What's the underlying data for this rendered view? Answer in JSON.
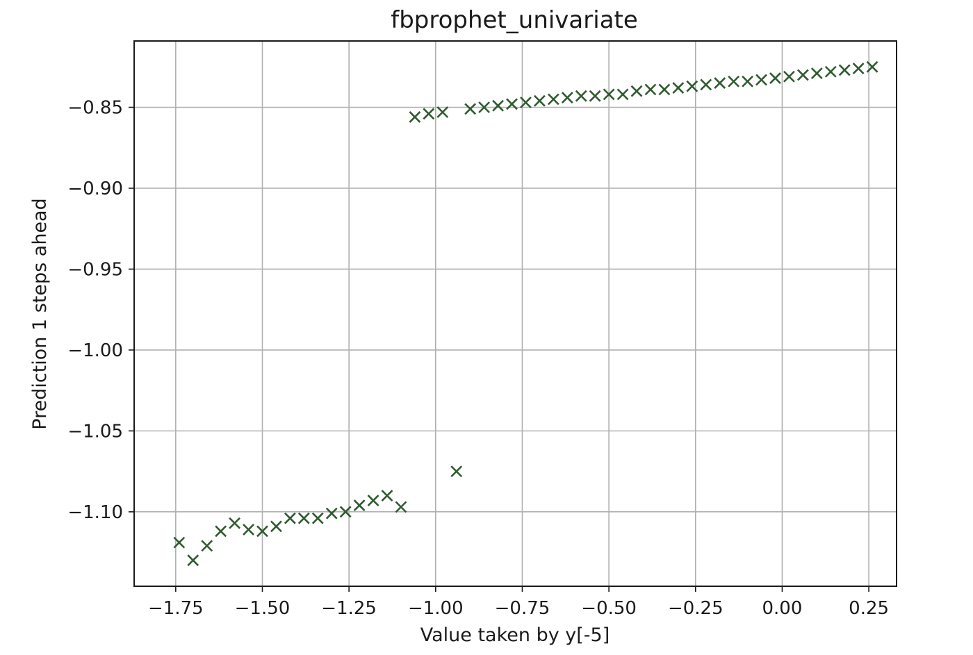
{
  "chart_data": {
    "type": "scatter",
    "title": "fbprophet_univariate",
    "xlabel": "Value taken by y[-5]",
    "ylabel": "Prediction 1 steps ahead",
    "xlim": [
      -1.87,
      0.33
    ],
    "ylim": [
      -1.146,
      -0.809
    ],
    "grid": true,
    "marker": "x",
    "color": "#2f5a2f",
    "x_ticks": [
      -1.75,
      -1.5,
      -1.25,
      -1.0,
      -0.75,
      -0.5,
      -0.25,
      0.0,
      0.25
    ],
    "x_tick_labels": [
      "−1.75",
      "−1.50",
      "−1.25",
      "−1.00",
      "−0.75",
      "−0.50",
      "−0.25",
      "0.00",
      "0.25"
    ],
    "y_ticks": [
      -0.85,
      -0.9,
      -0.95,
      -1.0,
      -1.05,
      -1.1
    ],
    "y_tick_labels": [
      "−0.85",
      "−0.90",
      "−0.95",
      "−1.00",
      "−1.05",
      "−1.10"
    ],
    "points": [
      {
        "x": -1.74,
        "y": -1.119
      },
      {
        "x": -1.7,
        "y": -1.13
      },
      {
        "x": -1.66,
        "y": -1.121
      },
      {
        "x": -1.62,
        "y": -1.112
      },
      {
        "x": -1.58,
        "y": -1.107
      },
      {
        "x": -1.54,
        "y": -1.111
      },
      {
        "x": -1.5,
        "y": -1.112
      },
      {
        "x": -1.46,
        "y": -1.109
      },
      {
        "x": -1.42,
        "y": -1.104
      },
      {
        "x": -1.38,
        "y": -1.104
      },
      {
        "x": -1.34,
        "y": -1.104
      },
      {
        "x": -1.3,
        "y": -1.101
      },
      {
        "x": -1.26,
        "y": -1.1
      },
      {
        "x": -1.22,
        "y": -1.096
      },
      {
        "x": -1.18,
        "y": -1.093
      },
      {
        "x": -1.14,
        "y": -1.09
      },
      {
        "x": -1.1,
        "y": -1.097
      },
      {
        "x": -0.94,
        "y": -1.075
      },
      {
        "x": -1.06,
        "y": -0.856
      },
      {
        "x": -1.02,
        "y": -0.854
      },
      {
        "x": -0.98,
        "y": -0.853
      },
      {
        "x": -0.9,
        "y": -0.851
      },
      {
        "x": -0.86,
        "y": -0.85
      },
      {
        "x": -0.82,
        "y": -0.849
      },
      {
        "x": -0.78,
        "y": -0.848
      },
      {
        "x": -0.74,
        "y": -0.847
      },
      {
        "x": -0.7,
        "y": -0.846
      },
      {
        "x": -0.66,
        "y": -0.845
      },
      {
        "x": -0.62,
        "y": -0.844
      },
      {
        "x": -0.58,
        "y": -0.843
      },
      {
        "x": -0.54,
        "y": -0.843
      },
      {
        "x": -0.5,
        "y": -0.842
      },
      {
        "x": -0.46,
        "y": -0.842
      },
      {
        "x": -0.42,
        "y": -0.84
      },
      {
        "x": -0.38,
        "y": -0.839
      },
      {
        "x": -0.34,
        "y": -0.839
      },
      {
        "x": -0.3,
        "y": -0.838
      },
      {
        "x": -0.26,
        "y": -0.837
      },
      {
        "x": -0.22,
        "y": -0.836
      },
      {
        "x": -0.18,
        "y": -0.835
      },
      {
        "x": -0.14,
        "y": -0.834
      },
      {
        "x": -0.1,
        "y": -0.834
      },
      {
        "x": -0.06,
        "y": -0.833
      },
      {
        "x": -0.02,
        "y": -0.832
      },
      {
        "x": 0.02,
        "y": -0.831
      },
      {
        "x": 0.06,
        "y": -0.83
      },
      {
        "x": 0.1,
        "y": -0.829
      },
      {
        "x": 0.14,
        "y": -0.828
      },
      {
        "x": 0.18,
        "y": -0.827
      },
      {
        "x": 0.22,
        "y": -0.826
      },
      {
        "x": 0.26,
        "y": -0.825
      }
    ]
  }
}
